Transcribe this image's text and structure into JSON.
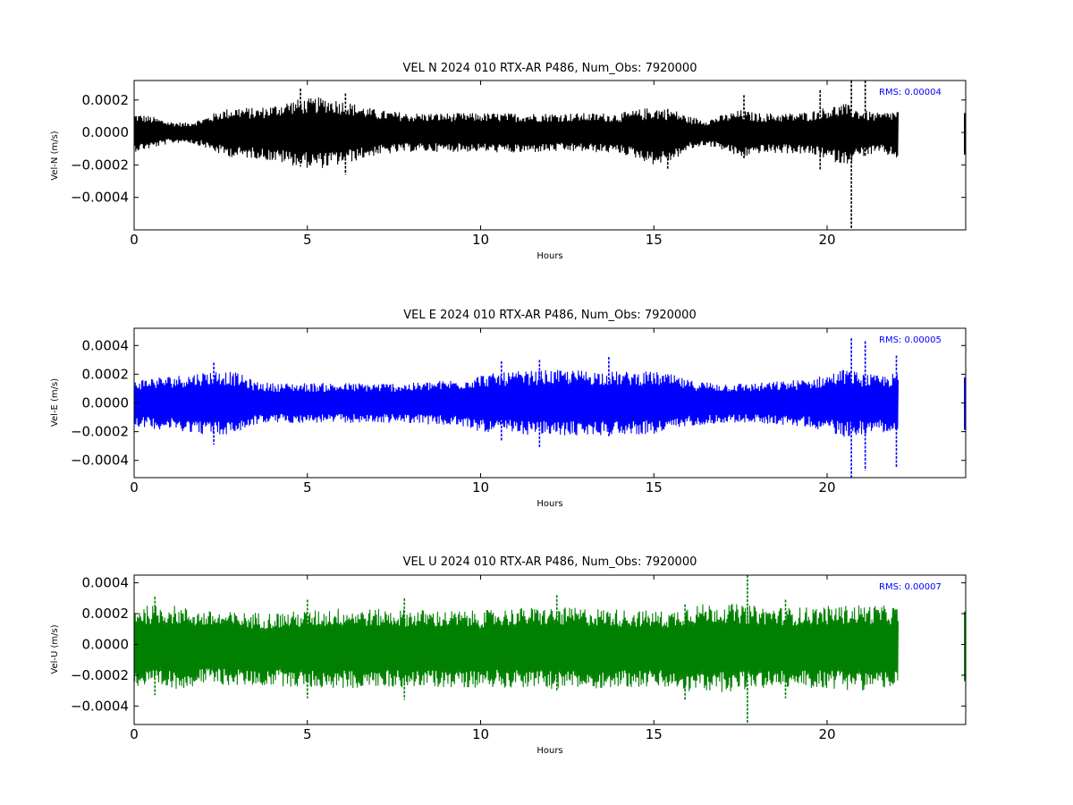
{
  "chart_data": [
    {
      "type": "line",
      "title": "VEL N 2024 010 RTX-AR  P486, Num_Obs: 7920000",
      "xlabel": "Hours",
      "ylabel": "Vel-N (m/s)",
      "xlim": [
        0,
        24
      ],
      "ylim": [
        -0.0006,
        0.00032
      ],
      "xticks": [
        0,
        5,
        10,
        15,
        20
      ],
      "xtick_labels": [
        "0",
        "5",
        "10",
        "15",
        "20"
      ],
      "yticks": [
        -0.0004,
        -0.0002,
        0.0,
        0.0002
      ],
      "ytick_labels": [
        "−0.0004",
        "−0.0002",
        "0.0000",
        "0.0002"
      ],
      "color": "#000000",
      "annotation": "RMS:  0.00004",
      "annotation_color": "#0000ff",
      "grid": false,
      "series": [
        {
          "data_extent_hours": [
            0,
            22.05
          ],
          "isolated_segment_hours": [
            23.95,
            24.0
          ],
          "envelope": {
            "hours": [
              0,
              0.5,
              1.0,
              1.5,
              2.0,
              2.5,
              3.0,
              3.5,
              4.0,
              4.5,
              5.0,
              5.5,
              6.0,
              6.5,
              7.0,
              7.5,
              8.0,
              9.0,
              10.0,
              11.0,
              12.0,
              13.0,
              14.0,
              14.5,
              15.0,
              15.5,
              16.0,
              16.5,
              17.0,
              17.5,
              18.0,
              18.5,
              19.0,
              19.5,
              20.0,
              20.5,
              21.0,
              21.5,
              22.0
            ],
            "upper": [
              0.00012,
              0.0001,
              7e-05,
              6e-05,
              9e-05,
              0.00014,
              0.00016,
              0.00015,
              0.00017,
              0.0002,
              0.00021,
              0.00022,
              0.0002,
              0.00017,
              0.00014,
              0.00013,
              0.00012,
              0.00012,
              0.00012,
              0.00012,
              0.00012,
              0.00012,
              0.00012,
              0.00014,
              0.00016,
              0.00015,
              0.0001,
              8e-05,
              0.00011,
              0.00014,
              0.00012,
              0.00012,
              0.00012,
              0.00013,
              0.00016,
              0.00018,
              0.00014,
              0.00012,
              0.00014
            ],
            "lower": [
              -0.00012,
              -0.0001,
              -7e-05,
              -6e-05,
              -9e-05,
              -0.00014,
              -0.00016,
              -0.00016,
              -0.00018,
              -0.0002,
              -0.00022,
              -0.00022,
              -0.0002,
              -0.00017,
              -0.00014,
              -0.00013,
              -0.00012,
              -0.00012,
              -0.00012,
              -0.00013,
              -0.00012,
              -0.00012,
              -0.00013,
              -0.00016,
              -0.0002,
              -0.00018,
              -0.00011,
              -8e-05,
              -0.00011,
              -0.00016,
              -0.00013,
              -0.00013,
              -0.00013,
              -0.00014,
              -0.00017,
              -0.0002,
              -0.00015,
              -0.00013,
              -0.00016
            ]
          },
          "spikes": [
            {
              "hour": 4.8,
              "high": 0.00027,
              "low": -0.00021
            },
            {
              "hour": 6.1,
              "high": 0.00024,
              "low": -0.00026
            },
            {
              "hour": 15.4,
              "high": 0.00014,
              "low": -0.00023
            },
            {
              "hour": 17.6,
              "high": 0.00023,
              "low": -0.00016
            },
            {
              "hour": 19.8,
              "high": 0.00026,
              "low": -0.00023
            },
            {
              "hour": 20.7,
              "high": 0.00032,
              "low": -0.0006
            },
            {
              "hour": 21.1,
              "high": 0.00032,
              "low": -0.00015
            }
          ]
        }
      ]
    },
    {
      "type": "line",
      "title": "VEL E 2024 010 RTX-AR  P486, Num_Obs: 7920000",
      "xlabel": "Hours",
      "ylabel": "Vel-E (m/s)",
      "xlim": [
        0,
        24
      ],
      "ylim": [
        -0.00052,
        0.00052
      ],
      "xticks": [
        0,
        5,
        10,
        15,
        20
      ],
      "xtick_labels": [
        "0",
        "5",
        "10",
        "15",
        "20"
      ],
      "yticks": [
        -0.0004,
        -0.0002,
        0.0,
        0.0002,
        0.0004
      ],
      "ytick_labels": [
        "−0.0004",
        "−0.0002",
        "0.0000",
        "0.0002",
        "0.0004"
      ],
      "color": "#0000ff",
      "annotation": "RMS:  0.00005",
      "annotation_color": "#0000ff",
      "grid": false,
      "series": [
        {
          "data_extent_hours": [
            0,
            22.05
          ],
          "isolated_segment_hours": [
            23.95,
            24.0
          ],
          "envelope": {
            "hours": [
              0,
              0.5,
              1.0,
              1.5,
              2.0,
              2.5,
              3.0,
              3.5,
              4.0,
              5.0,
              6.0,
              7.0,
              8.0,
              9.0,
              9.5,
              10.0,
              10.5,
              11.0,
              12.0,
              13.0,
              14.0,
              15.0,
              15.5,
              16.0,
              17.0,
              18.0,
              19.0,
              19.5,
              20.0,
              20.5,
              21.0,
              21.5,
              22.0
            ],
            "upper": [
              0.00016,
              0.00018,
              0.00019,
              0.0002,
              0.00022,
              0.00023,
              0.00021,
              0.00015,
              0.00014,
              0.00014,
              0.00014,
              0.00014,
              0.00014,
              0.00016,
              0.00017,
              0.0002,
              0.00021,
              0.00022,
              0.00023,
              0.00023,
              0.00022,
              0.00022,
              0.0002,
              0.00016,
              0.00014,
              0.00014,
              0.00016,
              0.00017,
              0.0002,
              0.00024,
              0.00021,
              0.00019,
              0.00021
            ],
            "lower": [
              -0.00016,
              -0.00018,
              -0.00019,
              -0.0002,
              -0.00022,
              -0.00023,
              -0.00021,
              -0.00015,
              -0.00014,
              -0.00014,
              -0.00014,
              -0.00014,
              -0.00014,
              -0.00016,
              -0.00017,
              -0.0002,
              -0.00021,
              -0.00022,
              -0.00023,
              -0.00023,
              -0.00022,
              -0.00022,
              -0.0002,
              -0.00016,
              -0.00014,
              -0.00014,
              -0.00016,
              -0.00017,
              -0.0002,
              -0.00024,
              -0.00022,
              -0.0002,
              -0.00022
            ]
          },
          "spikes": [
            {
              "hour": 2.3,
              "high": 0.00028,
              "low": -0.00029
            },
            {
              "hour": 10.6,
              "high": 0.00029,
              "low": -0.00027
            },
            {
              "hour": 11.7,
              "high": 0.0003,
              "low": -0.00031
            },
            {
              "hour": 13.7,
              "high": 0.00032,
              "low": -0.00024
            },
            {
              "hour": 20.7,
              "high": 0.00045,
              "low": -0.00052
            },
            {
              "hour": 21.1,
              "high": 0.00043,
              "low": -0.00047
            },
            {
              "hour": 22.0,
              "high": 0.00033,
              "low": -0.00045
            }
          ]
        }
      ]
    },
    {
      "type": "line",
      "title": "VEL U 2024 010 RTX-AR  P486, Num_Obs: 7920000",
      "xlabel": "Hours",
      "ylabel": "Vel-U (m/s)",
      "xlim": [
        0,
        24
      ],
      "ylim": [
        -0.00052,
        0.00045
      ],
      "xticks": [
        0,
        5,
        10,
        15,
        20
      ],
      "xtick_labels": [
        "0",
        "5",
        "10",
        "15",
        "20"
      ],
      "yticks": [
        -0.0004,
        -0.0002,
        0.0,
        0.0002,
        0.0004
      ],
      "ytick_labels": [
        "−0.0004",
        "−0.0002",
        "0.0000",
        "0.0002",
        "0.0004"
      ],
      "color": "#008000",
      "annotation": "RMS:  0.00007",
      "annotation_color": "#0000ff",
      "grid": false,
      "series": [
        {
          "data_extent_hours": [
            0,
            22.05
          ],
          "isolated_segment_hours": [
            23.95,
            24.0
          ],
          "envelope": {
            "hours": [
              0,
              1.0,
              2.0,
              3.0,
              4.0,
              5.0,
              6.0,
              7.0,
              8.0,
              9.0,
              10.0,
              11.0,
              12.0,
              13.0,
              14.0,
              15.0,
              15.5,
              16.0,
              17.0,
              18.0,
              19.0,
              20.0,
              21.0,
              22.0
            ],
            "upper": [
              0.00025,
              0.00026,
              0.00022,
              0.00021,
              0.00021,
              0.00022,
              0.00024,
              0.00023,
              0.00023,
              0.00022,
              0.00022,
              0.00024,
              0.00024,
              0.00024,
              0.00023,
              0.00022,
              0.00022,
              0.00026,
              0.00027,
              0.00025,
              0.00024,
              0.00025,
              0.00026,
              0.00025
            ],
            "lower": [
              -0.00028,
              -0.0003,
              -0.00026,
              -0.00027,
              -0.00027,
              -0.00028,
              -0.00029,
              -0.00028,
              -0.00028,
              -0.00028,
              -0.00028,
              -0.00028,
              -0.00029,
              -0.00029,
              -0.00028,
              -0.00028,
              -0.00029,
              -0.00031,
              -0.00031,
              -0.00029,
              -0.00028,
              -0.00029,
              -0.0003,
              -0.00028
            ]
          },
          "spikes": [
            {
              "hour": 0.6,
              "high": 0.00031,
              "low": -0.00033
            },
            {
              "hour": 5.0,
              "high": 0.00029,
              "low": -0.00035
            },
            {
              "hour": 7.8,
              "high": 0.0003,
              "low": -0.00036
            },
            {
              "hour": 12.2,
              "high": 0.00032,
              "low": -0.0003
            },
            {
              "hour": 15.9,
              "high": 0.00026,
              "low": -0.00036
            },
            {
              "hour": 17.7,
              "high": 0.00045,
              "low": -0.00052
            },
            {
              "hour": 18.8,
              "high": 0.00029,
              "low": -0.00035
            }
          ]
        }
      ]
    }
  ]
}
